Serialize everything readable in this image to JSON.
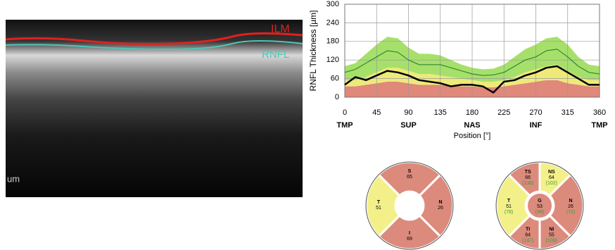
{
  "oct_image": {
    "labels": [
      "ILM",
      "RNFL",
      "um"
    ]
  },
  "chart_data": {
    "type": "line",
    "y_label": "RNFL Thickness [µm]",
    "x_label": "Position [°]",
    "x": [
      0,
      15,
      30,
      45,
      60,
      75,
      90,
      105,
      120,
      135,
      150,
      165,
      180,
      195,
      210,
      225,
      240,
      255,
      270,
      285,
      300,
      315,
      330,
      345,
      360
    ],
    "zones": [
      {
        "color": "#e0887a",
        "upper": [
          35,
          35,
          40,
          45,
          50,
          50,
          45,
          40,
          40,
          40,
          38,
          35,
          35,
          32,
          32,
          35,
          40,
          45,
          50,
          55,
          55,
          45,
          40,
          35,
          35
        ]
      },
      {
        "color": "#eeea7a",
        "upper": [
          55,
          55,
          65,
          80,
          95,
          95,
          85,
          75,
          75,
          70,
          65,
          60,
          55,
          50,
          50,
          55,
          65,
          80,
          90,
          100,
          105,
          85,
          65,
          55,
          55
        ]
      },
      {
        "color": "#a6e06a",
        "upper": [
          100,
          110,
          140,
          170,
          195,
          190,
          160,
          140,
          140,
          135,
          120,
          105,
          95,
          90,
          92,
          105,
          130,
          155,
          170,
          190,
          195,
          170,
          130,
          105,
          100
        ]
      }
    ],
    "series": [
      {
        "color": "#2f8a2f",
        "values": [
          80,
          90,
          110,
          130,
          150,
          145,
          120,
          105,
          105,
          105,
          95,
          85,
          75,
          70,
          72,
          80,
          100,
          120,
          130,
          150,
          155,
          130,
          100,
          80,
          75
        ]
      },
      {
        "color": "#000000",
        "values": [
          40,
          65,
          55,
          70,
          85,
          80,
          70,
          55,
          50,
          45,
          35,
          40,
          40,
          35,
          15,
          50,
          55,
          70,
          80,
          95,
          100,
          80,
          60,
          40,
          40
        ]
      }
    ],
    "xlim": [
      0,
      360
    ],
    "ylim": [
      0,
      300
    ],
    "xticks": [
      0,
      45,
      90,
      135,
      180,
      225,
      270,
      315,
      360
    ],
    "yticks": [
      0,
      60,
      120,
      180,
      240,
      300
    ],
    "sector_ticks": [
      {
        "value": 0,
        "label": "TMP"
      },
      {
        "value": 90,
        "label": "SUP"
      },
      {
        "value": 180,
        "label": "NAS"
      },
      {
        "value": 270,
        "label": "INF"
      },
      {
        "value": 360,
        "label": "TMP"
      }
    ],
    "grid": true
  },
  "sector_charts": [
    {
      "sectors": [
        {
          "label": "S",
          "value": 65,
          "color": "#dc8a7c"
        },
        {
          "label": "T",
          "value": 51,
          "color": "#f3f08a"
        },
        {
          "label": "N",
          "value": 26,
          "color": "#dc8a7c"
        },
        {
          "label": "I",
          "value": 69,
          "color": "#dc8a7c"
        }
      ]
    },
    {
      "sectors": [
        {
          "label": "TS",
          "value": 66,
          "reference": "(138)",
          "color": "#dc8a7c"
        },
        {
          "label": "NS",
          "value": 64,
          "reference": "(102)",
          "color": "#f3f08a"
        },
        {
          "label": "T",
          "value": 51,
          "reference": "(78)",
          "color": "#f3f08a"
        },
        {
          "label": "G",
          "value": 53,
          "reference": "(99)",
          "color": "#dc8a7c"
        },
        {
          "label": "N",
          "value": 26,
          "reference": "(72)",
          "color": "#dc8a7c"
        },
        {
          "label": "TI",
          "value": 64,
          "reference": "(147)",
          "color": "#dc8a7c"
        },
        {
          "label": "NI",
          "value": 55,
          "reference": "(109)",
          "color": "#dc8a7c"
        }
      ]
    }
  ]
}
